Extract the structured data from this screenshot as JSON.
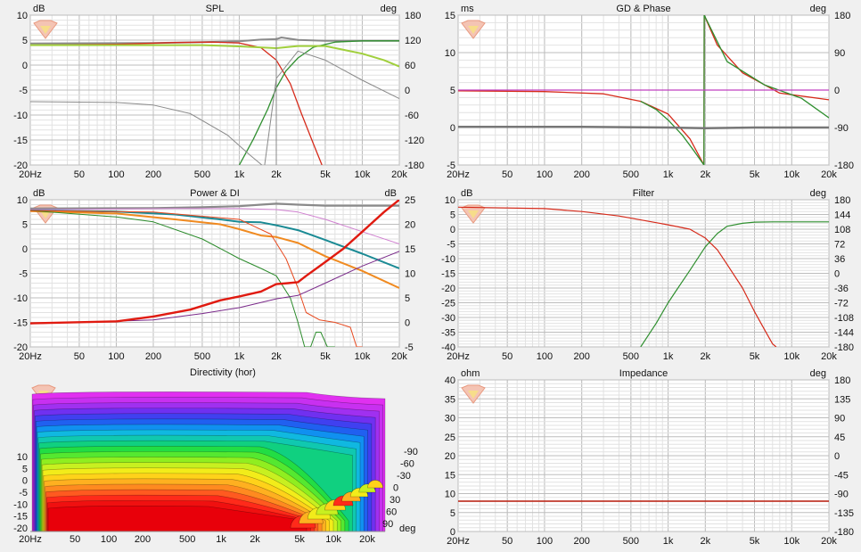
{
  "colors": {
    "plot_bg": "#ffffff",
    "grid_major": "#bdbdbd",
    "grid_minor": "#e2e2e2",
    "axis_text": "#111111"
  },
  "x_ticks": [
    "20Hz",
    "50",
    "100",
    "200",
    "500",
    "1k",
    "2k",
    "5k",
    "10k",
    "20k"
  ],
  "chart_data": [
    {
      "id": "spl",
      "type": "line",
      "title": "SPL",
      "x_scale": "log",
      "xlim": [
        20,
        20000
      ],
      "ylabel": "dB",
      "ylim": [
        -20,
        15
      ],
      "y_ticks": [
        "10",
        "5",
        "0",
        "-5",
        "-10",
        "-15",
        "-20"
      ],
      "y2label": "deg",
      "y2_ticks": [
        "180",
        "120",
        "60",
        "0",
        "-60",
        "-120",
        "-180"
      ],
      "series": [
        {
          "color": "#8a8a8a",
          "axis": "y1",
          "x": [
            20,
            200,
            500,
            1000,
            1500,
            2000,
            2200,
            3000,
            5000,
            10000,
            20000
          ],
          "y": [
            8.4,
            8.5,
            8.7,
            8.9,
            9.3,
            9.4,
            9.8,
            9.2,
            9.0,
            9.0,
            9.0
          ],
          "width": 2
        },
        {
          "color": "#d62a1a",
          "axis": "y1",
          "x": [
            20,
            100,
            300,
            600,
            1000,
            1500,
            2000,
            2600,
            3200,
            4000,
            4700
          ],
          "y": [
            8.0,
            8.2,
            8.6,
            8.7,
            8.5,
            7.4,
            4.5,
            -1,
            -8,
            -15,
            -20
          ],
          "width": 1.3
        },
        {
          "color": "#2f8f2f",
          "axis": "y1",
          "x": [
            1000,
            1300,
            1700,
            2000,
            2400,
            3000,
            4000,
            6000,
            10000,
            20000
          ],
          "y": [
            -20,
            -14,
            -7,
            -2,
            2,
            5,
            7.5,
            8.7,
            9.0,
            9.0
          ],
          "width": 1.3
        },
        {
          "color": "#a0cf3c",
          "axis": "y1",
          "x": [
            20,
            500,
            1000,
            2000,
            3000,
            5000,
            10000,
            15000,
            20000
          ],
          "y": [
            8.0,
            8.0,
            7.7,
            7.3,
            7.8,
            7.8,
            6.0,
            4.5,
            3.0
          ],
          "width": 2
        },
        {
          "color": "#8a8a8a",
          "axis": "y1",
          "x": [
            20,
            100,
            200,
            400,
            800,
            1200,
            1600,
            2000,
            3000,
            5000,
            10000,
            20000
          ],
          "y": [
            -5.2,
            -5.4,
            -6.0,
            -8,
            -13,
            -17.5,
            -20.5,
            0.2,
            6.6,
            4.5,
            -0.2,
            -4.5
          ],
          "width": 1
        },
        {
          "color": "#8a8a8a",
          "axis": "y1",
          "x": [
            2000,
            2000
          ],
          "y": [
            -20,
            9.8
          ],
          "width": 1
        }
      ]
    },
    {
      "id": "gd",
      "type": "line",
      "title": "GD & Phase",
      "x_scale": "log",
      "xlim": [
        20,
        20000
      ],
      "ylabel": "ms",
      "ylim": [
        -5,
        15
      ],
      "y_ticks": [
        "15",
        "10",
        "5",
        "0",
        "-5"
      ],
      "y2label": "deg",
      "y2_ticks": [
        "180",
        "90",
        "0",
        "-90",
        "-180"
      ],
      "series": [
        {
          "color": "#d62a1a",
          "axis": "y1",
          "x": [
            20,
            100,
            300,
            600,
            1000,
            1500,
            1950,
            1960,
            2500,
            4000,
            8000,
            20000
          ],
          "y": [
            4.9,
            4.8,
            4.5,
            3.5,
            1.8,
            -1.5,
            -5,
            15,
            11,
            7.3,
            4.6,
            3.7
          ],
          "width": 1.3
        },
        {
          "color": "#2f8f2f",
          "axis": "y1",
          "x": [
            600,
            800,
            1000,
            1300,
            1600,
            1950,
            1960,
            3000,
            6000,
            12000,
            20000
          ],
          "y": [
            3.5,
            2.4,
            1.0,
            -1,
            -3,
            -5,
            15,
            8.8,
            5.7,
            3.9,
            1.3
          ],
          "width": 1.3
        },
        {
          "color": "#c040c0",
          "axis": "y1",
          "x": [
            20,
            20000
          ],
          "y": [
            5,
            5
          ],
          "width": 1.2
        },
        {
          "color": "#777777",
          "axis": "y1",
          "x": [
            20,
            200,
            1000,
            2000,
            5000,
            20000
          ],
          "y": [
            0.1,
            0.1,
            0.0,
            -0.1,
            0.0,
            0.0
          ],
          "width": 2.5
        }
      ]
    },
    {
      "id": "power",
      "type": "line",
      "title": "Power & DI",
      "x_scale": "log",
      "xlim": [
        20,
        20000
      ],
      "ylabel": "dB",
      "ylim": [
        -20,
        10
      ],
      "y_ticks": [
        "10",
        "5",
        "0",
        "-5",
        "-10",
        "-15",
        "-20"
      ],
      "y2label": "dB",
      "y2_ticks": [
        "25",
        "20",
        "15",
        "10",
        "5",
        "0",
        "-5"
      ],
      "series": [
        {
          "color": "#8a8a8a",
          "axis": "y1",
          "x": [
            20,
            200,
            500,
            1000,
            1500,
            2000,
            3000,
            5000,
            10000,
            20000
          ],
          "y": [
            8.2,
            8.3,
            8.5,
            8.7,
            9.0,
            9.2,
            9.0,
            8.8,
            8.8,
            8.8
          ],
          "width": 2.2
        },
        {
          "color": "#d080d0",
          "axis": "y1",
          "x": [
            20,
            300,
            1000,
            2000,
            3000,
            5000,
            10000,
            20000
          ],
          "y": [
            8.0,
            8.2,
            8.2,
            8.0,
            7.5,
            6.0,
            3.5,
            1.0
          ],
          "width": 1
        },
        {
          "color": "#1a8a94",
          "axis": "y1",
          "x": [
            20,
            100,
            300,
            700,
            1000,
            1500,
            2000,
            3000,
            5000,
            10000,
            20000
          ],
          "y": [
            7.8,
            7.6,
            7.0,
            6.0,
            5.5,
            5.4,
            4.8,
            3.8,
            1.8,
            -1,
            -4
          ],
          "width": 2
        },
        {
          "color": "#f08a20",
          "axis": "y1",
          "x": [
            20,
            100,
            300,
            700,
            1000,
            1500,
            2000,
            3000,
            5000,
            10000,
            20000
          ],
          "y": [
            7.7,
            7.2,
            6.0,
            5.0,
            4.0,
            2.7,
            2.4,
            1.2,
            -1.5,
            -4.5,
            -8
          ],
          "width": 2
        },
        {
          "color": "#2a8a2a",
          "axis": "y1",
          "x": [
            20,
            100,
            200,
            500,
            1000,
            1500,
            2000,
            2600,
            3000,
            3400,
            3800,
            4200,
            4600,
            5200,
            6000
          ],
          "y": [
            7.8,
            6.5,
            5.5,
            2.0,
            -2.0,
            -4.0,
            -5.5,
            -10,
            -15,
            -20,
            -20,
            -17,
            -17,
            -20,
            -20
          ],
          "width": 1
        },
        {
          "color": "#e84a20",
          "axis": "y1",
          "x": [
            20,
            200,
            1000,
            1800,
            2400,
            3000,
            3500,
            4500,
            6000,
            8000,
            9000,
            10000
          ],
          "y": [
            7.8,
            7.5,
            6.0,
            3.0,
            -2.0,
            -8,
            -13,
            -14.5,
            -15,
            -16,
            -20,
            -20
          ],
          "width": 1
        },
        {
          "color": "#7a2a8a",
          "axis": "y2",
          "x": [
            20,
            200,
            500,
            1000,
            2000,
            3000,
            5000,
            10000,
            20000
          ],
          "y": [
            -0.3,
            0.5,
            1.8,
            3.0,
            4.8,
            5.5,
            8.0,
            11.5,
            14.5
          ],
          "width": 1
        },
        {
          "color": "#e01a10",
          "axis": "y2",
          "x": [
            20,
            100,
            200,
            400,
            700,
            1000,
            1500,
            2000,
            2500,
            3000,
            3500,
            5000,
            7000,
            10000,
            15000,
            20000
          ],
          "y": [
            -0.2,
            0.2,
            1.2,
            2.6,
            4.5,
            5.3,
            6.3,
            7.8,
            8.0,
            8.2,
            9.5,
            12.3,
            15.0,
            18.5,
            22.5,
            25
          ],
          "width": 2.4
        }
      ]
    },
    {
      "id": "filter",
      "type": "line",
      "title": "Filter",
      "x_scale": "log",
      "xlim": [
        20,
        20000
      ],
      "ylabel": "dB",
      "ylim": [
        -40,
        10
      ],
      "y_ticks": [
        "10",
        "5",
        "0",
        "-5",
        "-10",
        "-15",
        "-20",
        "-25",
        "-30",
        "-35",
        "-40"
      ],
      "y2label": "deg",
      "y2_ticks": [
        "180",
        "144",
        "108",
        "72",
        "36",
        "0",
        "-36",
        "-72",
        "-108",
        "-144",
        "-180"
      ],
      "series": [
        {
          "color": "#d62a1a",
          "axis": "y1",
          "x": [
            20,
            100,
            200,
            400,
            800,
            1000,
            1500,
            2000,
            2500,
            3000,
            4000,
            5000,
            6000,
            7000,
            7500
          ],
          "y": [
            7.5,
            7.0,
            6.0,
            4.5,
            2.2,
            1.5,
            0.0,
            -3.0,
            -7,
            -12,
            -20,
            -28,
            -34,
            -39,
            -40
          ],
          "width": 1.2
        },
        {
          "color": "#2f8f2f",
          "axis": "y1",
          "x": [
            600,
            800,
            1000,
            1200,
            1500,
            2000,
            2500,
            3000,
            4000,
            5000,
            7000,
            10000,
            20000
          ],
          "y": [
            -40,
            -32,
            -25,
            -20,
            -14,
            -6,
            -1.5,
            1,
            2.0,
            2.4,
            2.5,
            2.5,
            2.5
          ],
          "width": 1.2
        }
      ]
    },
    {
      "id": "impedance",
      "type": "line",
      "title": "Impedance",
      "x_scale": "log",
      "xlim": [
        20,
        20000
      ],
      "ylabel": "ohm",
      "ylim": [
        0,
        40
      ],
      "y_ticks": [
        "40",
        "35",
        "30",
        "25",
        "20",
        "15",
        "10",
        "5",
        "0"
      ],
      "y2label": "deg",
      "y2_ticks": [
        "180",
        "135",
        "90",
        "45",
        "0",
        "-45",
        "-90",
        "-135",
        "-180"
      ],
      "series": [
        {
          "color": "#c0392b",
          "axis": "y1",
          "x": [
            20,
            20000
          ],
          "y": [
            8,
            8
          ],
          "width": 1.8
        }
      ]
    },
    {
      "id": "directivity",
      "type": "heatmap",
      "title": "Directivity (hor)",
      "ylabel": "dB",
      "y_ticks": [
        "10",
        "5",
        "0",
        "-5",
        "-10",
        "-15",
        "-20"
      ],
      "angle_label": "deg",
      "angle_ticks": [
        "-90",
        "-60",
        "-30",
        "0",
        "30",
        "60",
        "90"
      ]
    }
  ]
}
